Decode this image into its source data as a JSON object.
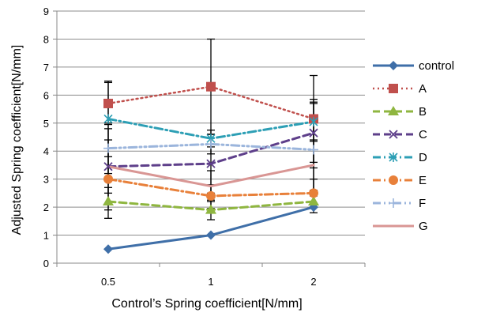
{
  "chart_data": {
    "type": "line",
    "title": "",
    "xlabel": "Control’s Spring coefficient[N/mm]",
    "ylabel": "Adjusted Spring coefficient[N/mm]",
    "categories": [
      "0.5",
      "1",
      "2"
    ],
    "ylim": [
      0,
      9
    ],
    "yticks": [
      0,
      1,
      2,
      3,
      4,
      5,
      6,
      7,
      8,
      9
    ],
    "grid": true,
    "legend_position": "right",
    "series": [
      {
        "name": "control",
        "values": [
          0.5,
          1.0,
          2.0
        ],
        "color": "#3f6fa8",
        "dash": "solid",
        "marker": "diamond",
        "width": 3
      },
      {
        "name": "A",
        "values": [
          5.7,
          6.3,
          5.15
        ],
        "color": "#c0504d",
        "dash": "dot",
        "marker": "square",
        "width": 2.5,
        "error": [
          [
            4.95,
            6.45
          ],
          [
            4.6,
            8.0
          ],
          [
            3.6,
            6.7
          ]
        ]
      },
      {
        "name": "B",
        "values": [
          2.2,
          1.9,
          2.2
        ],
        "color": "#8fb640",
        "dash": "dash",
        "marker": "triangle",
        "width": 3,
        "error": [
          [
            1.6,
            2.7
          ],
          [
            1.55,
            2.25
          ],
          [
            1.8,
            2.6
          ]
        ]
      },
      {
        "name": "C",
        "values": [
          3.45,
          3.55,
          4.65
        ],
        "color": "#5e3f8a",
        "dash": "dash",
        "marker": "x",
        "width": 3,
        "error": [
          [
            2.5,
            4.4
          ],
          [
            2.5,
            4.6
          ],
          [
            3.4,
            5.85
          ]
        ]
      },
      {
        "name": "D",
        "values": [
          5.15,
          4.45,
          5.05
        ],
        "color": "#2d9fb5",
        "dash": "dashdot",
        "marker": "asterisk",
        "width": 3,
        "error": [
          [
            3.8,
            6.5
          ],
          [
            4.15,
            4.75
          ],
          [
            4.35,
            5.75
          ]
        ]
      },
      {
        "name": "E",
        "values": [
          3.0,
          2.4,
          2.5
        ],
        "color": "#e8803a",
        "dash": "dashdot",
        "marker": "circle",
        "width": 3,
        "error": [
          [
            1.9,
            4.1
          ],
          [
            1.95,
            2.8
          ],
          [
            2.0,
            3.0
          ]
        ]
      },
      {
        "name": "F",
        "values": [
          4.1,
          4.25,
          4.05
        ],
        "color": "#9bb5dc",
        "dash": "dashdotdot",
        "marker": "plus",
        "width": 3,
        "error": [
          [
            3.2,
            5.0
          ],
          [
            3.9,
            4.6
          ],
          [
            2.4,
            5.7
          ]
        ]
      },
      {
        "name": "G",
        "values": [
          3.45,
          2.75,
          3.5
        ],
        "color": "#d99694",
        "dash": "solid",
        "marker": "none",
        "width": 3,
        "error": [
          [
            2.1,
            4.8
          ],
          [
            2.2,
            3.3
          ],
          [
            2.6,
            4.4
          ]
        ]
      }
    ]
  }
}
